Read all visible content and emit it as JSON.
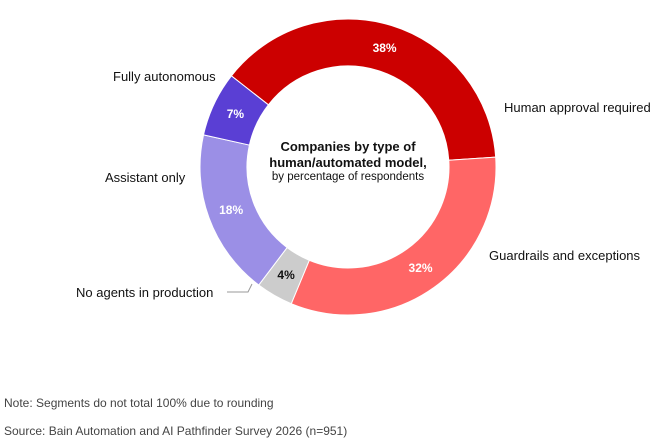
{
  "chart_data": {
    "type": "pie",
    "title_line1": "Companies by type of",
    "title_line2": "human/automated model,",
    "subtitle": "by percentage of respondents",
    "categories": [
      "Human approval required",
      "Guardrails and exceptions",
      "No agents in production",
      "Assistant only",
      "Fully autonomous"
    ],
    "values": [
      38,
      32,
      4,
      18,
      7
    ],
    "value_labels": [
      "38%",
      "32%",
      "4%",
      "18%",
      "7%"
    ],
    "colors": [
      "#cc0000",
      "#ff6666",
      "#cccccc",
      "#9b8fe6",
      "#5a3fd4"
    ],
    "value_label_colors": [
      "#ffffff",
      "#ffffff",
      "#111111",
      "#ffffff",
      "#ffffff"
    ]
  },
  "notes": {
    "note": "Note: Segments do not total 100% due to rounding",
    "source": "Source: Bain Automation and AI Pathfinder Survey 2026 (n=951)"
  }
}
